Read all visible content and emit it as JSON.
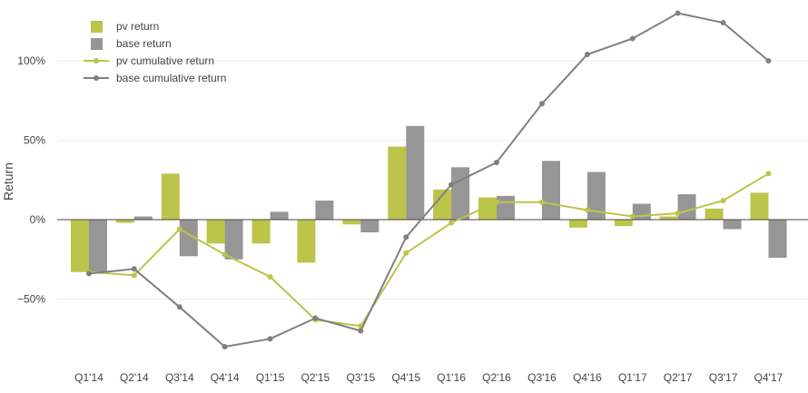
{
  "chart_data": {
    "type": "bar",
    "title": "",
    "xlabel": "",
    "ylabel": "Return",
    "ylim": [
      -0.9,
      1.35
    ],
    "yticks": [
      -0.5,
      0,
      0.5,
      1.0
    ],
    "ytick_labels": [
      "−50%",
      "0%",
      "50%",
      "100%"
    ],
    "grid": true,
    "legend_position": "top-left",
    "categories": [
      "Q1'14",
      "Q2'14",
      "Q3'14",
      "Q4'14",
      "Q1'15",
      "Q2'15",
      "Q3'15",
      "Q4'15",
      "Q1'16",
      "Q2'16",
      "Q3'16",
      "Q4'16",
      "Q1'17",
      "Q2'17",
      "Q3'17",
      "Q4'17"
    ],
    "series": [
      {
        "name": "pv return",
        "kind": "bar",
        "color": "#bcc44a",
        "values": [
          -0.33,
          -0.02,
          0.29,
          -0.15,
          -0.15,
          -0.27,
          -0.03,
          0.46,
          0.19,
          0.14,
          0.0,
          -0.05,
          -0.04,
          0.02,
          0.07,
          0.17
        ]
      },
      {
        "name": "base return",
        "kind": "bar",
        "color": "#969696",
        "values": [
          -0.33,
          0.02,
          -0.23,
          -0.25,
          0.05,
          0.12,
          -0.08,
          0.59,
          0.33,
          0.15,
          0.37,
          0.3,
          0.1,
          0.16,
          -0.06,
          -0.24
        ]
      },
      {
        "name": "pv cumulative return",
        "kind": "line",
        "color": "#bcc44a",
        "values": [
          -0.33,
          -0.35,
          -0.06,
          -0.22,
          -0.36,
          -0.63,
          -0.67,
          -0.21,
          -0.02,
          0.11,
          0.11,
          0.06,
          0.02,
          0.04,
          0.12,
          0.29
        ]
      },
      {
        "name": "base cumulative return",
        "kind": "line",
        "color": "#808080",
        "values": [
          -0.34,
          -0.31,
          -0.55,
          -0.8,
          -0.75,
          -0.62,
          -0.7,
          -0.11,
          0.22,
          0.36,
          0.73,
          1.04,
          1.14,
          1.3,
          1.24,
          1.0
        ]
      }
    ]
  }
}
